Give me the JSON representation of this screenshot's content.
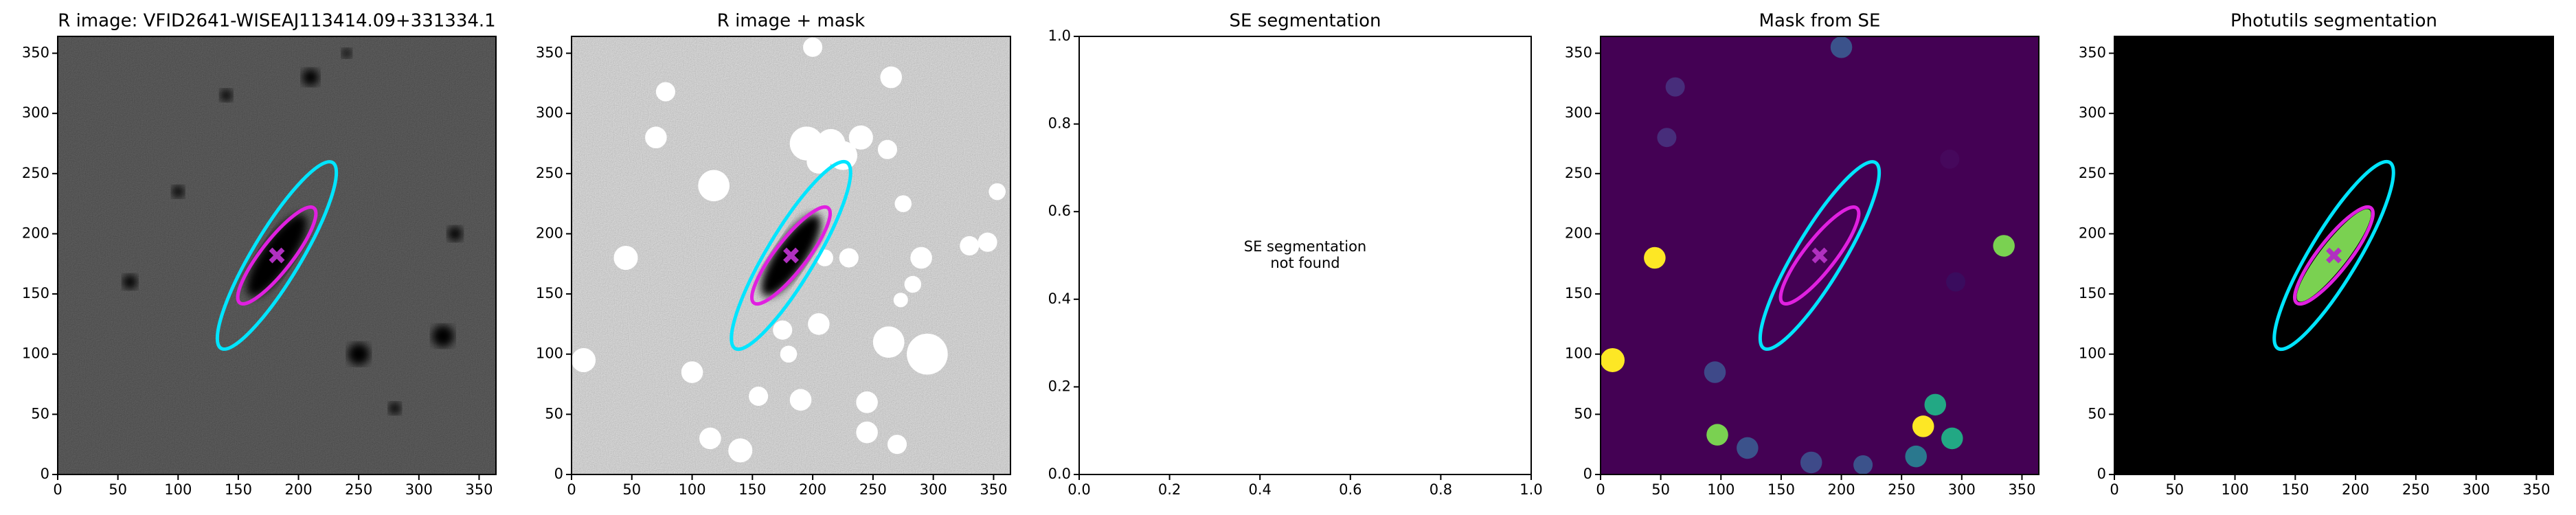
{
  "chart_data": [
    {
      "type": "image",
      "title": "R image: VFID2641-WISEAJ113414.09+331334.1",
      "background": "noise-dark",
      "xlim": [
        0,
        364
      ],
      "ylim": [
        0,
        364
      ],
      "xticks": [
        0,
        50,
        100,
        150,
        200,
        250,
        300,
        350
      ],
      "yticks": [
        0,
        50,
        100,
        150,
        200,
        250,
        300,
        350
      ],
      "ellipses": [
        {
          "x": 182,
          "y": 182,
          "a": 90,
          "b": 20,
          "angle": 59,
          "color": "#00e5ff"
        },
        {
          "x": 182,
          "y": 182,
          "a": 50,
          "b": 13,
          "angle": 52,
          "color": "#e020e0"
        }
      ],
      "marker": {
        "x": 182,
        "y": 182,
        "color": "#b030c0"
      }
    },
    {
      "type": "image",
      "title": "R image + mask",
      "background": "noise-light",
      "xlim": [
        0,
        364
      ],
      "ylim": [
        0,
        364
      ],
      "xticks": [
        0,
        50,
        100,
        150,
        200,
        250,
        300,
        350
      ],
      "yticks": [
        0,
        50,
        100,
        150,
        200,
        250,
        300,
        350
      ],
      "ellipses": [
        {
          "x": 182,
          "y": 182,
          "a": 90,
          "b": 20,
          "angle": 59,
          "color": "#00e5ff"
        },
        {
          "x": 182,
          "y": 182,
          "a": 50,
          "b": 13,
          "angle": 52,
          "color": "#e020e0"
        }
      ],
      "marker": {
        "x": 182,
        "y": 182,
        "color": "#b030c0"
      }
    },
    {
      "type": "image",
      "title": "SE segmentation",
      "background": "none",
      "xlim": [
        0,
        1
      ],
      "ylim": [
        0,
        1
      ],
      "xticks": [
        {
          "value": 0,
          "label": "0.0"
        },
        0.2,
        0.4,
        0.6,
        0.8,
        {
          "value": 1,
          "label": "1.0"
        }
      ],
      "yticks": [
        {
          "value": 0,
          "label": "0.0"
        },
        0.2,
        0.4,
        0.6,
        0.8,
        {
          "value": 1,
          "label": "1.0"
        }
      ],
      "annotation": [
        "SE segmentation",
        "not found"
      ]
    },
    {
      "type": "image",
      "title": "Mask from SE",
      "background": "viridis-mask",
      "xlim": [
        0,
        364
      ],
      "ylim": [
        0,
        364
      ],
      "xticks": [
        0,
        50,
        100,
        150,
        200,
        250,
        300,
        350
      ],
      "yticks": [
        0,
        50,
        100,
        150,
        200,
        250,
        300,
        350
      ],
      "ellipses": [
        {
          "x": 182,
          "y": 182,
          "a": 90,
          "b": 20,
          "angle": 59,
          "color": "#00e5ff"
        },
        {
          "x": 182,
          "y": 182,
          "a": 50,
          "b": 13,
          "angle": 52,
          "color": "#e020e0"
        }
      ],
      "marker": {
        "x": 182,
        "y": 182,
        "color": "#b030c0"
      }
    },
    {
      "type": "image",
      "title": "Photutils segmentation",
      "background": "black-seg",
      "xlim": [
        0,
        364
      ],
      "ylim": [
        0,
        364
      ],
      "xticks": [
        0,
        50,
        100,
        150,
        200,
        250,
        300,
        350
      ],
      "yticks": [
        0,
        50,
        100,
        150,
        200,
        250,
        300,
        350
      ],
      "ellipses": [
        {
          "x": 182,
          "y": 182,
          "a": 90,
          "b": 20,
          "angle": 59,
          "color": "#00e5ff"
        },
        {
          "x": 182,
          "y": 182,
          "a": 50,
          "b": 13,
          "angle": 52,
          "color": "#e020e0"
        }
      ],
      "marker": {
        "x": 182,
        "y": 182,
        "color": "#b030c0"
      }
    }
  ]
}
